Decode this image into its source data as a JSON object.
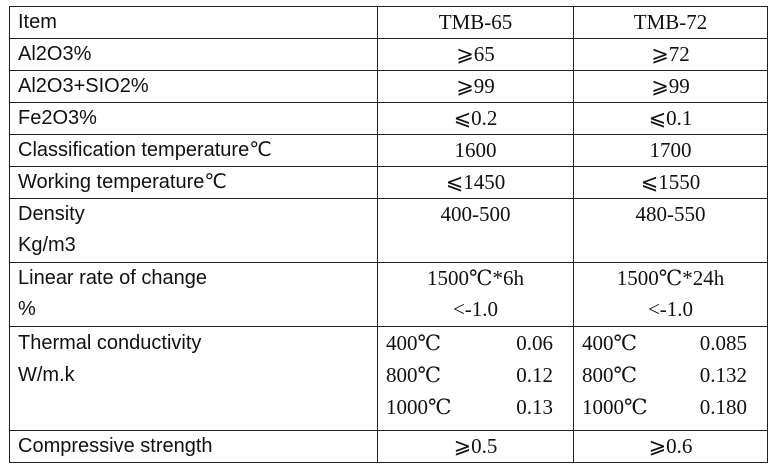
{
  "table": {
    "columns": [
      "Item",
      "TMB-65",
      "TMB-72"
    ],
    "rows": {
      "al2o3": {
        "label": "Al2O3%",
        "tmb65": "⩾65",
        "tmb72": "⩾72"
      },
      "al2o3_sio2": {
        "label": "Al2O3+SIO2%",
        "tmb65": "⩾99",
        "tmb72": "⩾99"
      },
      "fe2o3": {
        "label": "Fe2O3%",
        "tmb65": "⩽0.2",
        "tmb72": "⩽0.1"
      },
      "classification": {
        "label": "Classification temperature℃",
        "tmb65": "1600",
        "tmb72": "1700"
      },
      "working": {
        "label": "Working temperature℃",
        "tmb65": "⩽1450",
        "tmb72": "⩽1550"
      },
      "density": {
        "label_line1": "Density",
        "label_line2": "Kg/m3",
        "tmb65": "400-500",
        "tmb72": "480-550"
      },
      "linear": {
        "label_line1": "Linear rate of change",
        "label_line2": "%",
        "tmb65_line1": "1500℃*6h",
        "tmb65_line2": "<-1.0",
        "tmb72_line1": "1500℃*24h",
        "tmb72_line2": "<-1.0"
      },
      "thermal": {
        "label_line1": "Thermal conductivity",
        "label_line2": "W/m.k",
        "tmb65": [
          {
            "temp": "400℃",
            "value": "0.06"
          },
          {
            "temp": "800℃",
            "value": "0.12"
          },
          {
            "temp": "1000℃",
            "value": "0.13"
          }
        ],
        "tmb72": [
          {
            "temp": "400℃",
            "value": "0.085"
          },
          {
            "temp": "800℃",
            "value": "0.132"
          },
          {
            "temp": "1000℃",
            "value": "0.180"
          }
        ]
      },
      "compressive": {
        "label": "Compressive strength",
        "tmb65": "⩾0.5",
        "tmb72": "⩾0.6"
      }
    }
  }
}
